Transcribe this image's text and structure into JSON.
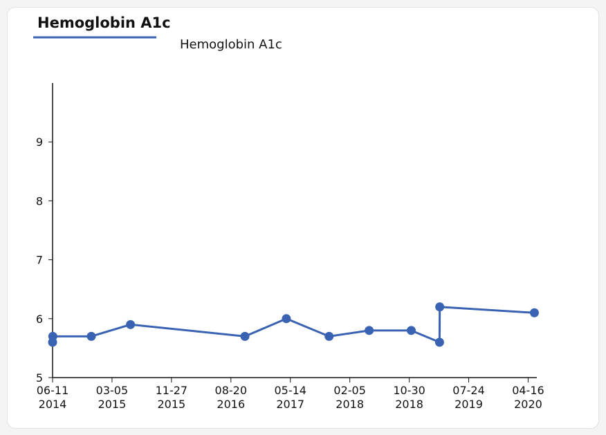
{
  "chart_data": {
    "type": "line",
    "title": "Hemoglobin A1c",
    "series": [
      {
        "name": "Hemoglobin A1c",
        "color": "#3a62b2",
        "x": [
          "2014-06-11",
          "2014-06-12",
          "2014-12-02",
          "2015-05-27",
          "2016-10-22",
          "2017-04-26",
          "2017-11-04",
          "2018-05-03",
          "2018-11-08",
          "2019-03-15",
          "2019-03-16",
          "2020-05-14"
        ],
        "values": [
          5.6,
          5.7,
          5.7,
          5.9,
          5.7,
          6.0,
          5.7,
          5.8,
          5.8,
          5.6,
          6.2,
          6.1
        ]
      }
    ],
    "xlim": [
      "2014-06-11",
      "2020-05-25"
    ],
    "xticks": [
      {
        "value": "2014-06-11",
        "label": [
          "06-11",
          "2014"
        ]
      },
      {
        "value": "2015-03-05",
        "label": [
          "03-05",
          "2015"
        ]
      },
      {
        "value": "2015-11-27",
        "label": [
          "11-27",
          "2015"
        ]
      },
      {
        "value": "2016-08-20",
        "label": [
          "08-20",
          "2016"
        ]
      },
      {
        "value": "2017-05-14",
        "label": [
          "05-14",
          "2017"
        ]
      },
      {
        "value": "2018-02-05",
        "label": [
          "02-05",
          "2018"
        ]
      },
      {
        "value": "2018-10-30",
        "label": [
          "10-30",
          "2018"
        ]
      },
      {
        "value": "2019-07-24",
        "label": [
          "07-24",
          "2019"
        ]
      },
      {
        "value": "2020-04-16",
        "label": [
          "04-16",
          "2020"
        ]
      }
    ],
    "ylim": [
      5,
      10
    ],
    "yticks": [
      5,
      6,
      7,
      8,
      9
    ],
    "grid": false
  }
}
